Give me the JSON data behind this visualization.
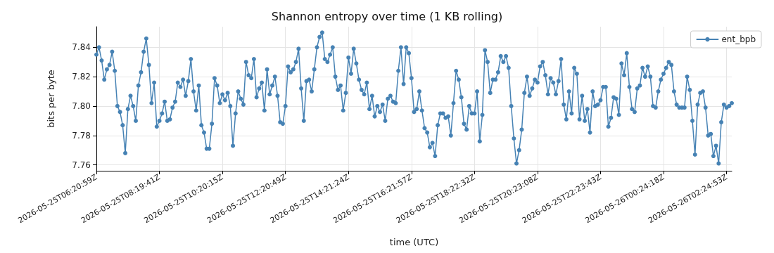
{
  "chart_data": {
    "type": "line",
    "title": "Shannon entropy over time (1 KB rolling)",
    "xlabel": "time (UTC)",
    "ylabel": "bits per byte",
    "categories": [
      "2026-05-25T06:20:59Z",
      null,
      null,
      null,
      null,
      null,
      null,
      null,
      null,
      null,
      null,
      null,
      null,
      null,
      null,
      null,
      null,
      null,
      null,
      null,
      null,
      null,
      null,
      null,
      "2026-05-25T08:19:41Z",
      null,
      null,
      null,
      null,
      null,
      null,
      null,
      null,
      null,
      null,
      null,
      null,
      null,
      null,
      null,
      null,
      null,
      null,
      null,
      null,
      null,
      null,
      null,
      "2026-05-25T10:20:15Z",
      null,
      null,
      null,
      null,
      null,
      null,
      null,
      null,
      null,
      null,
      null,
      null,
      null,
      null,
      null,
      null,
      null,
      null,
      null,
      null,
      null,
      null,
      null,
      "2026-05-25T12:20:49Z",
      null,
      null,
      null,
      null,
      null,
      null,
      null,
      null,
      null,
      null,
      null,
      null,
      null,
      null,
      null,
      null,
      null,
      null,
      null,
      null,
      null,
      null,
      null,
      "2026-05-25T14:21:24Z",
      null,
      null,
      null,
      null,
      null,
      null,
      null,
      null,
      null,
      null,
      null,
      null,
      null,
      null,
      null,
      null,
      null,
      null,
      null,
      null,
      null,
      null,
      null,
      "2026-05-25T16:21:57Z",
      null,
      null,
      null,
      null,
      null,
      null,
      null,
      null,
      null,
      null,
      null,
      null,
      null,
      null,
      null,
      null,
      null,
      null,
      null,
      null,
      null,
      null,
      null,
      "2026-05-25T18:22:32Z",
      null,
      null,
      null,
      null,
      null,
      null,
      null,
      null,
      null,
      null,
      null,
      null,
      null,
      null,
      null,
      null,
      null,
      null,
      null,
      null,
      null,
      null,
      null,
      "2026-05-25T20:23:08Z",
      null,
      null,
      null,
      null,
      null,
      null,
      null,
      null,
      null,
      null,
      null,
      null,
      null,
      null,
      null,
      null,
      null,
      null,
      null,
      null,
      null,
      null,
      null,
      "2026-05-25T22:23:43Z",
      null,
      null,
      null,
      null,
      null,
      null,
      null,
      null,
      null,
      null,
      null,
      null,
      null,
      null,
      null,
      null,
      null,
      null,
      null,
      null,
      null,
      null,
      null,
      "2026-05-26T00:24:18Z",
      null,
      null,
      null,
      null,
      null,
      null,
      null,
      null,
      null,
      null,
      null,
      null,
      null,
      null,
      null,
      null,
      null,
      null,
      null,
      null,
      null,
      null,
      null,
      "2026-05-26T02:24:53Z",
      null,
      null
    ],
    "series": [
      {
        "name": "ent_bpb",
        "color": "#4682b4",
        "values": [
          7.835,
          7.84,
          7.831,
          7.818,
          7.825,
          7.828,
          7.837,
          7.824,
          7.8,
          7.796,
          7.787,
          7.768,
          7.798,
          7.807,
          7.8,
          7.79,
          7.814,
          7.823,
          7.837,
          7.846,
          7.828,
          7.802,
          7.816,
          7.786,
          7.79,
          7.795,
          7.803,
          7.79,
          7.791,
          7.799,
          7.803,
          7.816,
          7.813,
          7.818,
          7.807,
          7.817,
          7.832,
          7.81,
          7.797,
          7.814,
          7.787,
          7.782,
          7.771,
          7.771,
          7.788,
          7.819,
          7.814,
          7.802,
          7.808,
          7.804,
          7.809,
          7.8,
          7.773,
          7.795,
          7.81,
          7.805,
          7.801,
          7.83,
          7.821,
          7.819,
          7.832,
          7.806,
          7.812,
          7.816,
          7.797,
          7.825,
          7.808,
          7.814,
          7.82,
          7.807,
          7.789,
          7.788,
          7.8,
          7.827,
          7.823,
          7.825,
          7.83,
          7.839,
          7.812,
          7.79,
          7.817,
          7.818,
          7.81,
          7.825,
          7.84,
          7.847,
          7.85,
          7.832,
          7.83,
          7.835,
          7.84,
          7.82,
          7.811,
          7.814,
          7.797,
          7.809,
          7.833,
          7.822,
          7.839,
          7.829,
          7.818,
          7.811,
          7.808,
          7.816,
          7.798,
          7.807,
          7.793,
          7.8,
          7.796,
          7.801,
          7.79,
          7.805,
          7.807,
          7.803,
          7.802,
          7.824,
          7.84,
          7.815,
          7.84,
          7.836,
          7.819,
          7.796,
          7.798,
          7.81,
          7.797,
          7.785,
          7.782,
          7.772,
          7.775,
          7.766,
          7.787,
          7.795,
          7.795,
          7.792,
          7.793,
          7.78,
          7.802,
          7.824,
          7.818,
          7.806,
          7.788,
          7.784,
          7.8,
          7.795,
          7.795,
          7.81,
          7.776,
          7.794,
          7.838,
          7.83,
          7.809,
          7.818,
          7.818,
          7.823,
          7.834,
          7.83,
          7.834,
          7.826,
          7.8,
          7.778,
          7.761,
          7.77,
          7.784,
          7.809,
          7.82,
          7.807,
          7.812,
          7.818,
          7.816,
          7.827,
          7.83,
          7.821,
          7.808,
          7.819,
          7.816,
          7.808,
          7.817,
          7.832,
          7.801,
          7.791,
          7.81,
          7.795,
          7.826,
          7.822,
          7.791,
          7.807,
          7.79,
          7.798,
          7.782,
          7.81,
          7.8,
          7.801,
          7.804,
          7.813,
          7.813,
          7.786,
          7.792,
          7.806,
          7.805,
          7.794,
          7.829,
          7.821,
          7.836,
          7.813,
          7.798,
          7.796,
          7.812,
          7.814,
          7.826,
          7.82,
          7.827,
          7.82,
          7.8,
          7.799,
          7.81,
          7.818,
          7.822,
          7.826,
          7.83,
          7.828,
          7.81,
          7.801,
          7.799,
          7.799,
          7.799,
          7.82,
          7.811,
          7.79,
          7.767,
          7.801,
          7.809,
          7.81,
          7.799,
          7.78,
          7.781,
          7.766,
          7.773,
          7.761,
          7.789,
          7.801,
          7.799,
          7.8,
          7.802
        ]
      }
    ],
    "ylim": [
      7.756,
      7.854
    ],
    "yticks": [
      {
        "value": 7.76,
        "label": "7.76"
      },
      {
        "value": 7.78,
        "label": "7.78"
      },
      {
        "value": 7.8,
        "label": "7.80"
      },
      {
        "value": 7.82,
        "label": "7.82"
      },
      {
        "value": 7.84,
        "label": "7.84"
      }
    ],
    "grid": true,
    "legend": "top right",
    "marker": "circle",
    "line_style": "solid"
  }
}
